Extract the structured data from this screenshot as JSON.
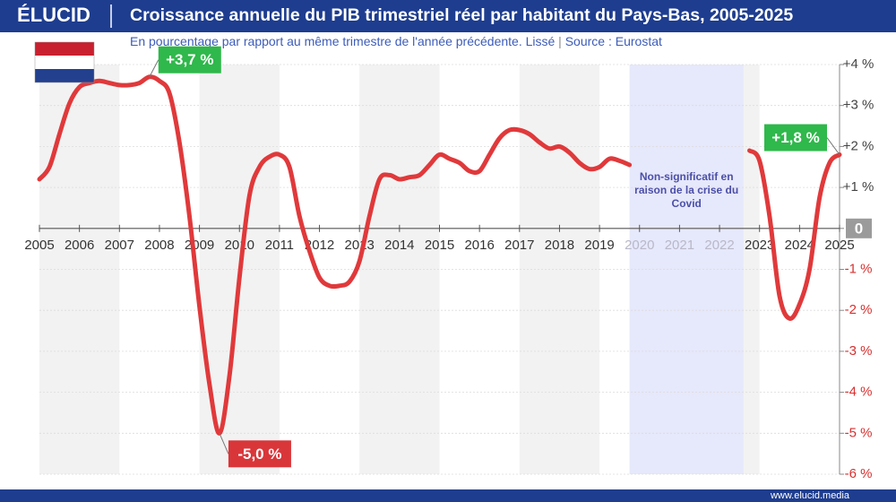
{
  "brand": "ÉLUCID",
  "footer": "www.elucid.media",
  "chart_data": {
    "type": "line",
    "title": "Croissance annuelle du PIB trimestriel réel par habitant du Pays-Bas, 2005-2025",
    "subtitle": "En pourcentage par rapport au même trimestre de l'année précédente. Lissé",
    "source": "Source : Eurostat",
    "color": "#e0393b",
    "x": [
      2005,
      2005.25,
      2005.5,
      2005.75,
      2006,
      2006.25,
      2006.5,
      2006.75,
      2007,
      2007.25,
      2007.5,
      2007.75,
      2008,
      2008.25,
      2008.5,
      2008.75,
      2009,
      2009.25,
      2009.5,
      2009.75,
      2010,
      2010.25,
      2010.5,
      2010.75,
      2011,
      2011.25,
      2011.5,
      2011.75,
      2012,
      2012.25,
      2012.5,
      2012.75,
      2013,
      2013.25,
      2013.5,
      2013.75,
      2014,
      2014.25,
      2014.5,
      2014.75,
      2015,
      2015.25,
      2015.5,
      2015.75,
      2016,
      2016.25,
      2016.5,
      2016.75,
      2017,
      2017.25,
      2017.5,
      2017.75,
      2018,
      2018.25,
      2018.5,
      2018.75,
      2019,
      2019.25,
      2019.5,
      2019.75,
      2021,
      2022.75,
      2023,
      2023.25,
      2023.5,
      2023.75,
      2024,
      2024.25,
      2024.5,
      2024.75,
      2025
    ],
    "values": [
      1.2,
      1.5,
      2.3,
      3.05,
      3.45,
      3.55,
      3.6,
      3.55,
      3.5,
      3.5,
      3.55,
      3.7,
      3.6,
      3.3,
      2.1,
      0.3,
      -1.9,
      -3.8,
      -5.0,
      -3.6,
      -1.2,
      0.8,
      1.5,
      1.75,
      1.8,
      1.5,
      0.3,
      -0.55,
      -1.2,
      -1.4,
      -1.4,
      -1.3,
      -0.8,
      0.3,
      1.2,
      1.3,
      1.2,
      1.25,
      1.3,
      1.55,
      1.8,
      1.7,
      1.6,
      1.4,
      1.4,
      1.8,
      2.2,
      2.4,
      2.4,
      2.3,
      2.1,
      1.95,
      2.0,
      1.85,
      1.6,
      1.45,
      1.5,
      1.7,
      1.65,
      1.55,
      null,
      1.9,
      1.65,
      0.3,
      -1.65,
      -2.2,
      -1.85,
      -1.0,
      0.75,
      1.6,
      1.8
    ],
    "value_labels": [
      null,
      null,
      null,
      null,
      null,
      null,
      null,
      null,
      null,
      null,
      null,
      "+3,7 %",
      null,
      null,
      null,
      null,
      null,
      null,
      "-5,0 %",
      null,
      null,
      null,
      null,
      null,
      null,
      null,
      null,
      null,
      null,
      null,
      null,
      null,
      null,
      null,
      null,
      null,
      null,
      null,
      null,
      null,
      null,
      null,
      null,
      null,
      null,
      null,
      null,
      null,
      null,
      null,
      null,
      null,
      null,
      null,
      null,
      null,
      null,
      null,
      null,
      null,
      null,
      null,
      null,
      null,
      null,
      null,
      null,
      null,
      null,
      null,
      "+1,8 %"
    ],
    "xlim": [
      2005,
      2025
    ],
    "xticks": [
      2005,
      2006,
      2007,
      2008,
      2009,
      2010,
      2011,
      2012,
      2013,
      2014,
      2015,
      2016,
      2017,
      2018,
      2019,
      2020,
      2021,
      2022,
      2023,
      2024,
      2025
    ],
    "ylim": [
      -6,
      4
    ],
    "yticks": [
      {
        "value": 4,
        "label": "+4 %"
      },
      {
        "value": 3,
        "label": "+3 %"
      },
      {
        "value": 2,
        "label": "+2 %"
      },
      {
        "value": 1,
        "label": "+1 %"
      },
      0,
      {
        "value": -1,
        "label": "-1 %"
      },
      {
        "value": -2,
        "label": "-2 %"
      },
      {
        "value": -3,
        "label": "-3 %"
      },
      {
        "value": -4,
        "label": "-4 %"
      },
      {
        "value": -5,
        "label": "-5 %"
      },
      {
        "value": -6,
        "label": "-6 %"
      }
    ],
    "grid": true,
    "shaded_region": {
      "x": [
        2019.75,
        2022.6
      ],
      "label": "Non-significatif en raison de la crise du Covid",
      "color": "#e6e8fb"
    }
  }
}
